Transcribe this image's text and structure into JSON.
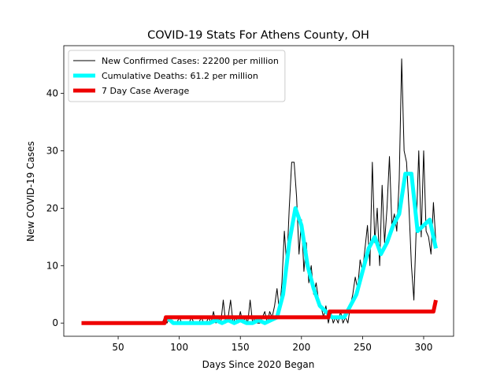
{
  "chart_data": {
    "type": "line",
    "title": "COVID-19 Stats For Athens County, OH",
    "xlabel": "Days Since 2020 Began",
    "ylabel": "New COVID-19 Cases",
    "xlim": [
      5.5,
      324.5
    ],
    "ylim": [
      -2.3,
      48.3
    ],
    "xticks": [
      50,
      100,
      150,
      200,
      250,
      300
    ],
    "yticks": [
      0,
      10,
      20,
      30,
      40
    ],
    "legend": "upper left",
    "series": [
      {
        "name": "New Confirmed Cases: 22200 per million",
        "color": "#000000",
        "width": 1,
        "x": [
          86,
          88,
          90,
          92,
          94,
          96,
          98,
          100,
          102,
          104,
          106,
          108,
          110,
          112,
          114,
          116,
          118,
          120,
          122,
          124,
          126,
          128,
          130,
          132,
          134,
          136,
          138,
          140,
          142,
          144,
          146,
          148,
          150,
          152,
          154,
          156,
          158,
          160,
          162,
          164,
          166,
          168,
          170,
          172,
          174,
          176,
          178,
          180,
          182,
          184,
          186,
          188,
          190,
          192,
          194,
          196,
          198,
          200,
          202,
          204,
          206,
          208,
          210,
          212,
          214,
          216,
          218,
          220,
          222,
          224,
          226,
          228,
          230,
          232,
          234,
          236,
          238,
          240,
          242,
          244,
          246,
          248,
          250,
          252,
          254,
          256,
          258,
          260,
          262,
          264,
          266,
          268,
          270,
          272,
          274,
          276,
          278,
          280,
          282,
          284,
          286,
          288,
          290,
          292,
          294,
          296,
          298,
          300,
          302,
          304,
          306,
          308,
          310
        ],
        "values": [
          0,
          1,
          0,
          1,
          0,
          0,
          0,
          1,
          0,
          0,
          0,
          0,
          1,
          0,
          0,
          0,
          1,
          0,
          0,
          1,
          0,
          2,
          0,
          1,
          0,
          4,
          0,
          1,
          4,
          0,
          1,
          0,
          2,
          0,
          1,
          0,
          4,
          0,
          1,
          0,
          0,
          1,
          2,
          0,
          2,
          1,
          3,
          6,
          2,
          7,
          16,
          10,
          20,
          28,
          28,
          22,
          12,
          18,
          9,
          14,
          7,
          10,
          5,
          7,
          4,
          3,
          1,
          3,
          0,
          2,
          0,
          1,
          0,
          2,
          0,
          1,
          0,
          3,
          5,
          8,
          6,
          11,
          9,
          13,
          17,
          10,
          28,
          14,
          20,
          10,
          24,
          14,
          20,
          29,
          17,
          19,
          16,
          25,
          46,
          30,
          28,
          20,
          10,
          4,
          17,
          30,
          15,
          30,
          16,
          15,
          12,
          21,
          14
        ]
      },
      {
        "name": "Cumulative Deaths: 61.2 per million",
        "color": "#00ffff",
        "width": 5,
        "x": [
          90,
          95,
          100,
          105,
          110,
          115,
          120,
          125,
          130,
          135,
          140,
          145,
          150,
          155,
          160,
          165,
          170,
          175,
          180,
          185,
          190,
          195,
          200,
          205,
          210,
          215,
          220,
          225,
          230,
          235,
          240,
          245,
          250,
          255,
          260,
          265,
          270,
          275,
          280,
          285,
          290,
          295,
          300,
          305,
          310
        ],
        "values": [
          1,
          0,
          0,
          0,
          0,
          0,
          0,
          0,
          0.5,
          0,
          0.5,
          0,
          0.5,
          0,
          0,
          0.5,
          0,
          0.5,
          1,
          5,
          14,
          20,
          17,
          10,
          6,
          3,
          2,
          1,
          1,
          1,
          3,
          5,
          9,
          13,
          15,
          12,
          14,
          17,
          19,
          26,
          26,
          16,
          17,
          18,
          13
        ]
      },
      {
        "name": "7 Day Case Average",
        "color": "#ee0000",
        "width": 5,
        "x": [
          20,
          88,
          89,
          222,
          223,
          308,
          310
        ],
        "values": [
          0,
          0,
          1,
          1,
          2,
          2,
          4
        ]
      }
    ]
  }
}
